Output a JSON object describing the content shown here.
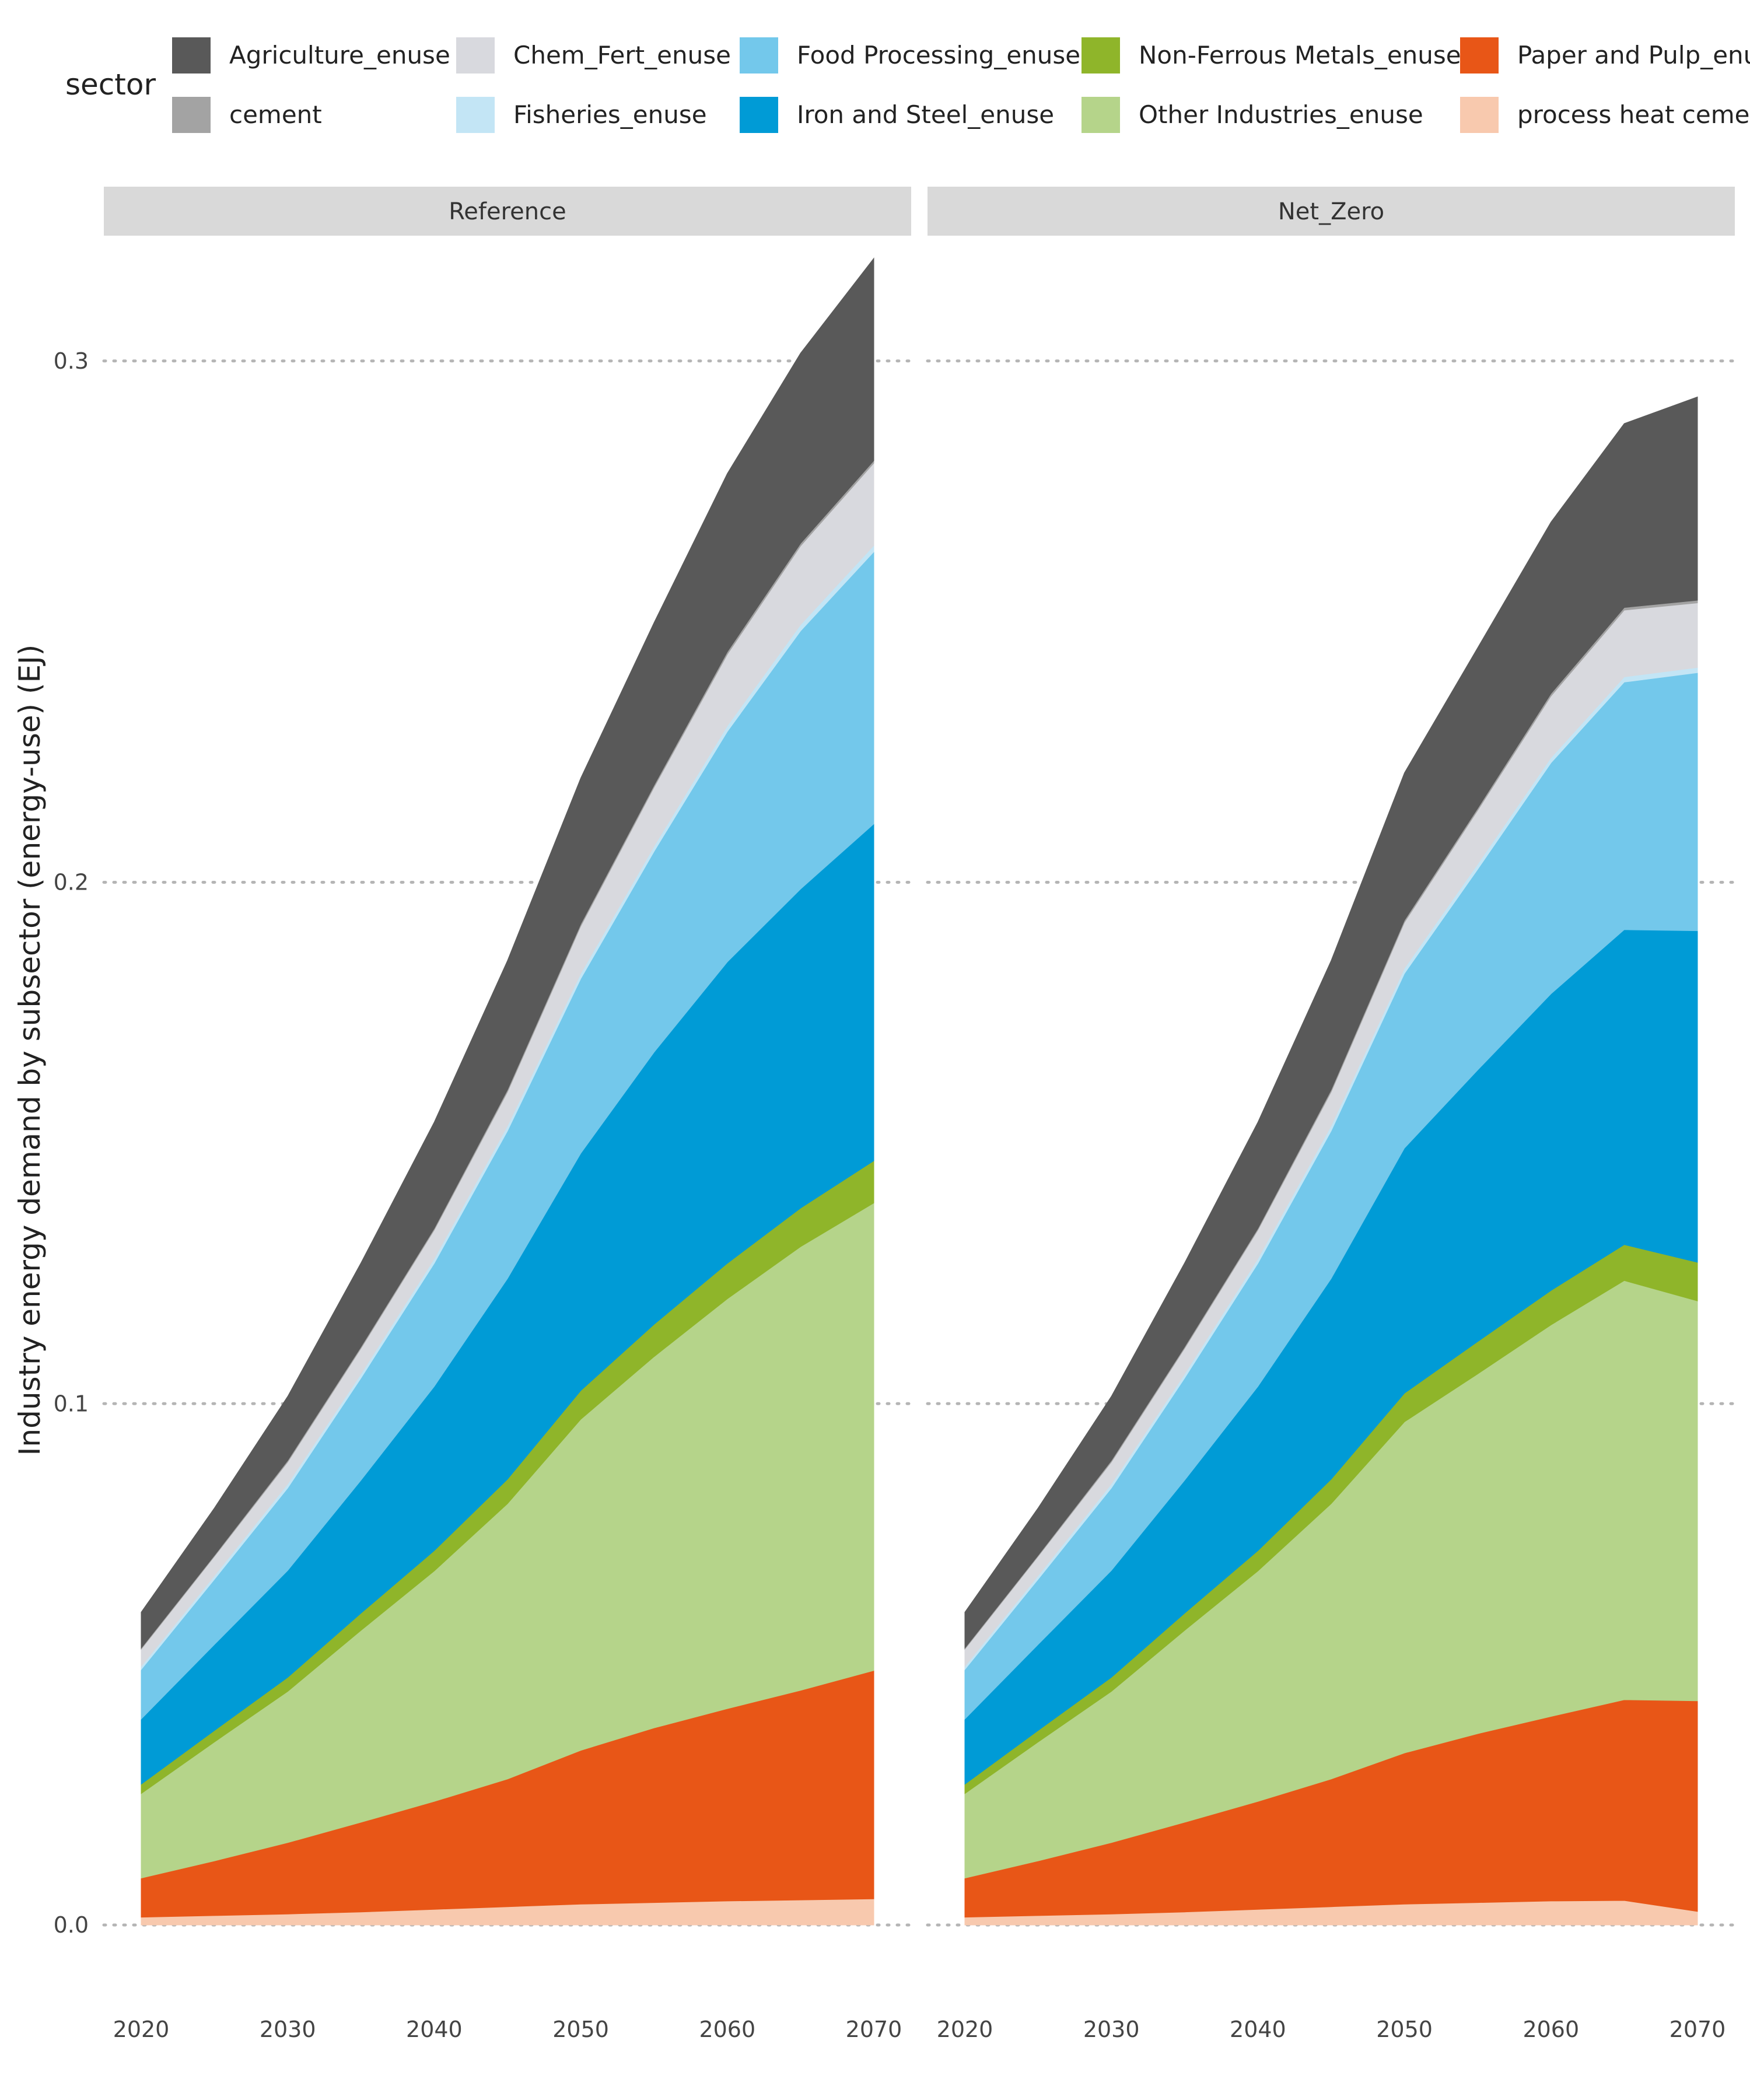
{
  "chart_data": {
    "type": "area",
    "stacked": true,
    "ylabel": "Industry energy demand by subsector (energy-use) (EJ)",
    "xlabel": "",
    "ylim": [
      0,
      0.32
    ],
    "yticks": [
      "0.0",
      "0.1",
      "0.2",
      "0.3"
    ],
    "xticks": [
      "2020",
      "2030",
      "2040",
      "2050",
      "2060",
      "2070"
    ],
    "x": [
      2020,
      2025,
      2030,
      2035,
      2040,
      2045,
      2050,
      2055,
      2060,
      2065,
      2070
    ],
    "grid": "horizontal dotted",
    "legend": {
      "title": "sector",
      "position": "top",
      "items": [
        {
          "label": "Agriculture_enuse",
          "color": "#595959"
        },
        {
          "label": "Chem_Fert_enuse",
          "color": "#d8d9de"
        },
        {
          "label": "Food Processing_enuse",
          "color": "#73c8eb"
        },
        {
          "label": "Non-Ferrous Metals_enuse",
          "color": "#8fb52a"
        },
        {
          "label": "Paper and Pulp_enuse",
          "color": "#e85617"
        },
        {
          "label": "cement",
          "color": "#a3a3a3"
        },
        {
          "label": "Fisheries_enuse",
          "color": "#c3e5f5"
        },
        {
          "label": "Iron and Steel_enuse",
          "color": "#009bd6"
        },
        {
          "label": "Other Industries_enuse",
          "color": "#b5d48a"
        },
        {
          "label": "process heat cement",
          "color": "#f8c9ae"
        }
      ]
    },
    "panels": [
      {
        "title": "Reference",
        "series": [
          {
            "name": "process heat cement",
            "color": "#f8c9ae",
            "values": [
              0.0015,
              0.0018,
              0.0021,
              0.0025,
              0.003,
              0.0035,
              0.004,
              0.0043,
              0.0046,
              0.0048,
              0.005
            ]
          },
          {
            "name": "Paper and Pulp_enuse",
            "color": "#e85617",
            "values": [
              0.0075,
              0.0105,
              0.0137,
              0.0172,
              0.0207,
              0.0245,
              0.0295,
              0.0335,
              0.0369,
              0.0402,
              0.0438
            ]
          },
          {
            "name": "Other Industries_enuse",
            "color": "#b5d48a",
            "values": [
              0.0162,
              0.0228,
              0.029,
              0.0368,
              0.0442,
              0.0528,
              0.0635,
              0.0712,
              0.0786,
              0.0851,
              0.0897
            ]
          },
          {
            "name": "Non-Ferrous Metals_enuse",
            "color": "#8fb52a",
            "values": [
              0.0018,
              0.0022,
              0.0027,
              0.0033,
              0.0039,
              0.0047,
              0.0055,
              0.0062,
              0.0068,
              0.0074,
              0.0081
            ]
          },
          {
            "name": "Iron and Steel_enuse",
            "color": "#009bd6",
            "values": [
              0.0125,
              0.0165,
              0.0205,
              0.0255,
              0.0315,
              0.0385,
              0.0455,
              0.0522,
              0.0578,
              0.0612,
              0.0646
            ]
          },
          {
            "name": "Food Processing_enuse",
            "color": "#73c8eb",
            "values": [
              0.0095,
              0.0125,
              0.0158,
              0.0196,
              0.0236,
              0.0283,
              0.0335,
              0.0385,
              0.0442,
              0.0495,
              0.0522
            ]
          },
          {
            "name": "Fisheries_enuse",
            "color": "#c3e5f5",
            "values": [
              0.0006,
              0.0007,
              0.0008,
              0.0008,
              0.0009,
              0.001,
              0.001,
              0.001,
              0.0011,
              0.0012,
              0.0012
            ]
          },
          {
            "name": "Chem_Fert_enuse",
            "color": "#d8d9de",
            "values": [
              0.0033,
              0.0037,
              0.0042,
              0.0049,
              0.0055,
              0.0065,
              0.0091,
              0.0113,
              0.0137,
              0.0151,
              0.0158
            ]
          },
          {
            "name": "cement",
            "color": "#a3a3a3",
            "values": [
              0.0002,
              0.0002,
              0.0003,
              0.0003,
              0.0003,
              0.0004,
              0.0004,
              0.0004,
              0.0005,
              0.0005,
              0.0005
            ]
          },
          {
            "name": "Agriculture_enuse",
            "color": "#595959",
            "values": [
              0.0069,
              0.0091,
              0.0123,
              0.0161,
              0.0204,
              0.0248,
              0.028,
              0.0312,
              0.0342,
              0.0365,
              0.0388
            ]
          }
        ]
      },
      {
        "title": "Net_Zero",
        "series": [
          {
            "name": "process heat cement",
            "color": "#f8c9ae",
            "values": [
              0.0015,
              0.0018,
              0.0021,
              0.0025,
              0.003,
              0.0035,
              0.004,
              0.0043,
              0.0046,
              0.0047,
              0.0026
            ]
          },
          {
            "name": "Paper and Pulp_enuse",
            "color": "#e85617",
            "values": [
              0.0075,
              0.0105,
              0.0137,
              0.0172,
              0.0207,
              0.0245,
              0.029,
              0.0324,
              0.0354,
              0.0385,
              0.0404
            ]
          },
          {
            "name": "Other Industries_enuse",
            "color": "#b5d48a",
            "values": [
              0.0162,
              0.0228,
              0.029,
              0.0368,
              0.0442,
              0.0528,
              0.0635,
              0.069,
              0.0751,
              0.0804,
              0.0767
            ]
          },
          {
            "name": "Non-Ferrous Metals_enuse",
            "color": "#8fb52a",
            "values": [
              0.0018,
              0.0022,
              0.0027,
              0.0033,
              0.0039,
              0.0047,
              0.0055,
              0.0062,
              0.0066,
              0.0069,
              0.0074
            ]
          },
          {
            "name": "Iron and Steel_enuse",
            "color": "#009bd6",
            "values": [
              0.0125,
              0.0165,
              0.0205,
              0.0255,
              0.0315,
              0.0385,
              0.047,
              0.0521,
              0.0569,
              0.0604,
              0.0636
            ]
          },
          {
            "name": "Food Processing_enuse",
            "color": "#73c8eb",
            "values": [
              0.0095,
              0.0125,
              0.0158,
              0.0196,
              0.0236,
              0.0283,
              0.0335,
              0.0385,
              0.0443,
              0.0475,
              0.0495
            ]
          },
          {
            "name": "Fisheries_enuse",
            "color": "#c3e5f5",
            "values": [
              0.0006,
              0.0007,
              0.0008,
              0.0008,
              0.0009,
              0.001,
              0.001,
              0.001,
              0.001,
              0.001,
              0.001
            ]
          },
          {
            "name": "Chem_Fert_enuse",
            "color": "#d8d9de",
            "values": [
              0.0033,
              0.0037,
              0.0042,
              0.0049,
              0.0055,
              0.0065,
              0.0088,
              0.0103,
              0.0118,
              0.0128,
              0.0124
            ]
          },
          {
            "name": "cement",
            "color": "#a3a3a3",
            "values": [
              0.0002,
              0.0002,
              0.0003,
              0.0003,
              0.0003,
              0.0004,
              0.0004,
              0.0004,
              0.0005,
              0.0005,
              0.0005
            ]
          },
          {
            "name": "Agriculture_enuse",
            "color": "#595959",
            "values": [
              0.0069,
              0.0091,
              0.0123,
              0.0161,
              0.0204,
              0.0248,
              0.0283,
              0.0308,
              0.0329,
              0.0353,
              0.039
            ]
          }
        ]
      }
    ]
  }
}
